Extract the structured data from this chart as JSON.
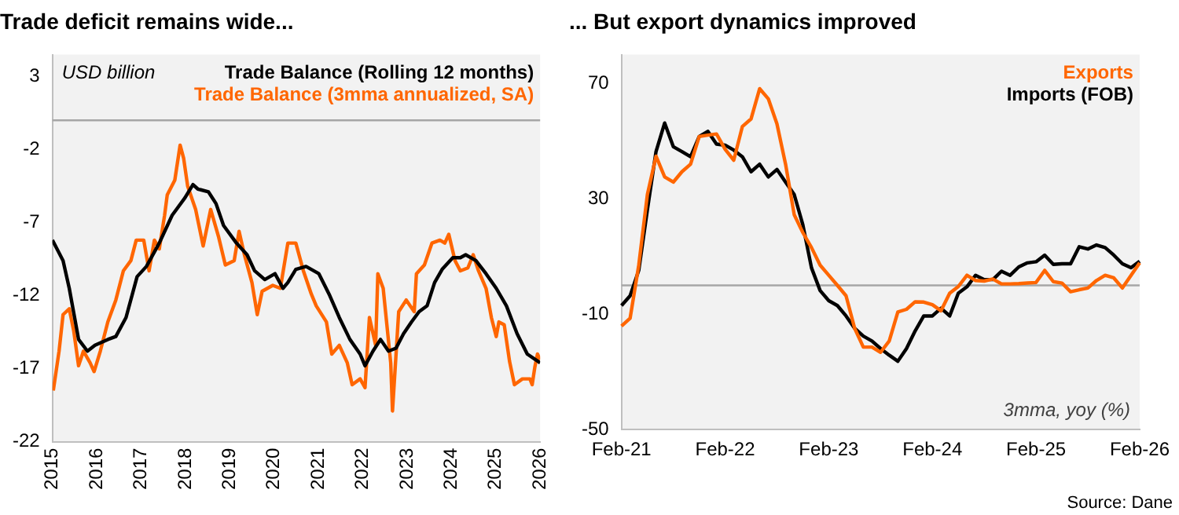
{
  "chart_data": [
    {
      "type": "line",
      "title": "Trade deficit remains wide...",
      "xlim": [
        2015,
        2026
      ],
      "xticks": [
        2015,
        2016,
        2017,
        2018,
        2019,
        2020,
        2021,
        2022,
        2023,
        2024,
        2025,
        2026
      ],
      "ylim": [
        -22,
        4.5
      ],
      "yticks": [
        -22,
        -17,
        -12,
        -7,
        -2,
        3
      ],
      "grid": false,
      "legend": "top right",
      "ref_lines": [
        {
          "axis": "y",
          "value": 0,
          "color": "#a6a6a6"
        }
      ],
      "annotations": [
        "USD billion"
      ],
      "series": [
        {
          "name": "Trade Balance (Rolling 12 months)",
          "color": "#000000",
          "x": [
            2015.0,
            2015.24,
            2015.38,
            2015.5,
            2015.59,
            2015.79,
            2015.96,
            2016.25,
            2016.43,
            2016.66,
            2016.91,
            2017.12,
            2017.41,
            2017.7,
            2017.99,
            2018.17,
            2018.28,
            2018.52,
            2018.69,
            2018.86,
            2019.15,
            2019.39,
            2019.56,
            2019.79,
            2020.02,
            2020.2,
            2020.31,
            2020.49,
            2020.72,
            2021.01,
            2021.24,
            2021.47,
            2021.71,
            2021.94,
            2022.05,
            2022.23,
            2022.4,
            2022.58,
            2022.75,
            2022.92,
            2023.1,
            2023.27,
            2023.45,
            2023.62,
            2023.79,
            2024.03,
            2024.2,
            2024.32,
            2024.55,
            2024.78,
            2025.01,
            2025.24,
            2025.48,
            2025.71,
            2026.0
          ],
          "values": [
            -8.2,
            -9.6,
            -11.5,
            -13.5,
            -15.0,
            -15.8,
            -15.4,
            -15.0,
            -14.8,
            -13.5,
            -10.7,
            -10.0,
            -8.4,
            -6.5,
            -5.3,
            -4.4,
            -4.7,
            -4.9,
            -5.7,
            -7.2,
            -8.4,
            -9.2,
            -10.3,
            -10.9,
            -10.5,
            -11.5,
            -11.1,
            -10.2,
            -10.0,
            -10.5,
            -11.9,
            -13.5,
            -15.0,
            -16.0,
            -16.8,
            -15.8,
            -15.0,
            -15.8,
            -15.6,
            -14.6,
            -13.8,
            -13.1,
            -12.7,
            -11.1,
            -10.2,
            -9.4,
            -9.4,
            -9.2,
            -9.6,
            -10.5,
            -11.5,
            -12.7,
            -14.6,
            -16.0,
            -16.6
          ]
        },
        {
          "name": "Trade Balance (3mma annualized, SA)",
          "color": "#ff6600",
          "x": [
            2015.02,
            2015.15,
            2015.24,
            2015.38,
            2015.48,
            2015.59,
            2015.7,
            2015.85,
            2015.94,
            2016.08,
            2016.25,
            2016.43,
            2016.6,
            2016.77,
            2016.89,
            2017.06,
            2017.18,
            2017.3,
            2017.41,
            2017.53,
            2017.59,
            2017.76,
            2017.88,
            2017.96,
            2018.05,
            2018.23,
            2018.4,
            2018.57,
            2018.75,
            2018.9,
            2019.1,
            2019.21,
            2019.33,
            2019.5,
            2019.62,
            2019.73,
            2019.97,
            2020.14,
            2020.31,
            2020.49,
            2020.66,
            2020.84,
            2020.95,
            2021.18,
            2021.3,
            2021.47,
            2021.65,
            2021.76,
            2021.94,
            2022.05,
            2022.15,
            2022.29,
            2022.34,
            2022.46,
            2022.63,
            2022.67,
            2022.81,
            2022.98,
            2023.16,
            2023.21,
            2023.39,
            2023.56,
            2023.74,
            2023.85,
            2023.94,
            2024.08,
            2024.2,
            2024.37,
            2024.49,
            2024.61,
            2024.78,
            2024.9,
            2025.01,
            2025.07,
            2025.19,
            2025.31,
            2025.42,
            2025.6,
            2025.77,
            2025.82,
            2025.88,
            2025.94,
            2026.0
          ],
          "values": [
            -18.5,
            -15.8,
            -13.3,
            -12.9,
            -14.4,
            -16.8,
            -15.8,
            -16.6,
            -17.2,
            -15.8,
            -13.8,
            -12.3,
            -10.3,
            -9.6,
            -8.2,
            -8.2,
            -10.3,
            -8.2,
            -8.8,
            -6.5,
            -5.1,
            -4.1,
            -1.7,
            -2.6,
            -4.5,
            -6.1,
            -8.6,
            -6.1,
            -8.0,
            -9.9,
            -9.6,
            -7.6,
            -9.2,
            -11.1,
            -13.3,
            -11.7,
            -11.3,
            -11.5,
            -8.4,
            -8.4,
            -10.3,
            -11.9,
            -12.7,
            -13.8,
            -16.0,
            -15.4,
            -16.6,
            -18.1,
            -17.7,
            -18.3,
            -13.5,
            -15.4,
            -10.5,
            -11.5,
            -16.6,
            -19.9,
            -13.1,
            -12.3,
            -13.1,
            -10.5,
            -9.9,
            -8.4,
            -8.2,
            -8.4,
            -7.8,
            -9.6,
            -10.3,
            -10.1,
            -9.2,
            -10.3,
            -11.5,
            -13.5,
            -14.8,
            -13.8,
            -14.0,
            -16.5,
            -18.1,
            -17.7,
            -17.7,
            -18.1,
            -16.9,
            -16.0,
            -16.4
          ]
        }
      ]
    },
    {
      "type": "line",
      "title": "... But export dynamics improved",
      "categories": [
        "Feb-21",
        null,
        null,
        null,
        null,
        null,
        null,
        null,
        null,
        null,
        null,
        null,
        "Feb-22",
        null,
        null,
        null,
        null,
        null,
        null,
        null,
        null,
        null,
        null,
        null,
        "Feb-23",
        null,
        null,
        null,
        null,
        null,
        null,
        null,
        null,
        null,
        null,
        null,
        "Feb-24",
        null,
        null,
        null,
        null,
        null,
        null,
        null,
        null,
        null,
        null,
        null,
        "Feb-25",
        null,
        null,
        null,
        null,
        null,
        null,
        null,
        null,
        null,
        null,
        null,
        "Feb-26"
      ],
      "ylim": [
        -50,
        80
      ],
      "yticks": [
        -50,
        -10,
        30,
        70
      ],
      "grid": false,
      "legend": "top right",
      "ref_lines": [
        {
          "axis": "y",
          "value": 0,
          "color": "#a6a6a6"
        }
      ],
      "annotations": [
        "3mma, yoy (%)",
        "Source: Dane"
      ],
      "series": [
        {
          "name": "Exports",
          "color": "#ff6600",
          "values": [
            -14.1,
            -11.4,
            7,
            31.5,
            44.8,
            37.6,
            35.8,
            39.4,
            42,
            51.6,
            52.1,
            52.5,
            47.2,
            43.4,
            55.1,
            57.7,
            68.2,
            64.7,
            56,
            42,
            24.5,
            18.3,
            13.1,
            7,
            3.5,
            0,
            -3.6,
            -14.9,
            -21.4,
            -21.4,
            -23.2,
            -19.3,
            -9.2,
            -8.3,
            -5.7,
            -5.8,
            -6.7,
            -8.8,
            -2.7,
            -0.4,
            3.5,
            1.7,
            1.5,
            2.2,
            0.5,
            0.5,
            0.6,
            0.8,
            1.0,
            5.2,
            1.3,
            0.8,
            -2.2,
            -1.5,
            -0.9,
            1.7,
            3.5,
            2.6,
            -0.9,
            3.5,
            7.8
          ]
        },
        {
          "name": "Imports (FOB)",
          "color": "#000000",
          "values": [
            -7,
            -3.6,
            5.2,
            26.2,
            46.4,
            56.3,
            48.1,
            46.4,
            44.6,
            51.6,
            53.4,
            49,
            48.6,
            46.9,
            44.6,
            39.4,
            42,
            37.6,
            40.2,
            35.8,
            31.5,
            21,
            6.1,
            -1.8,
            -5.3,
            -7,
            -10.6,
            -14.9,
            -17.6,
            -19.3,
            -21.9,
            -24.2,
            -26.3,
            -21.9,
            -15.8,
            -10.6,
            -10.6,
            -7.9,
            -10.6,
            -2.7,
            -0.5,
            3.5,
            2,
            2,
            4.9,
            3.5,
            6.4,
            7.8,
            8.2,
            10.5,
            7.3,
            7.5,
            7.5,
            13.4,
            12.6,
            14,
            13.1,
            10.5,
            7.5,
            6.1,
            8.4
          ]
        }
      ]
    }
  ]
}
